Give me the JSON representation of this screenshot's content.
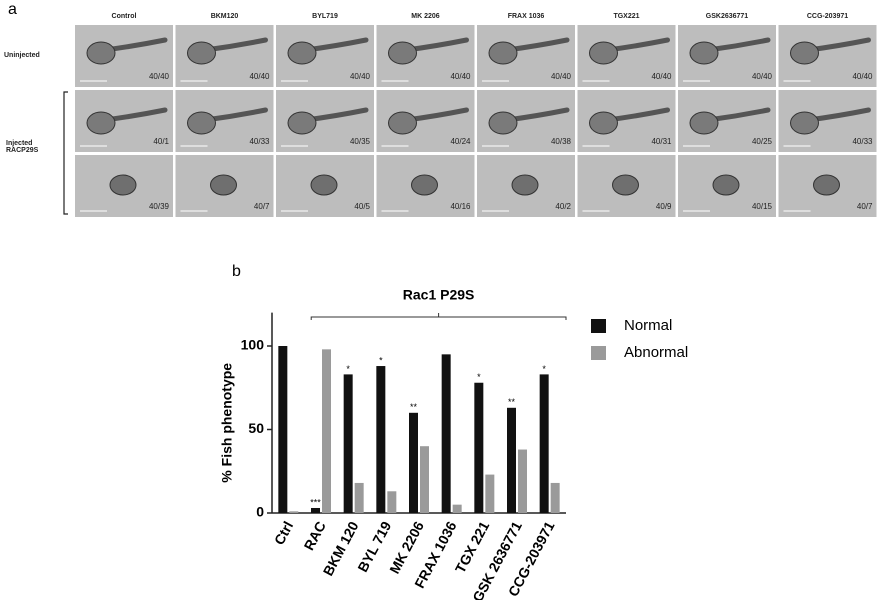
{
  "panel_a": {
    "label": "a",
    "columns": [
      "Control",
      "BKM120",
      "BYL719",
      "MK 2206",
      "FRAX 1036",
      "TGX221",
      "GSK2636771",
      "CCG-203971"
    ],
    "row_labels": [
      "Uninjected",
      "Injected RACP29S"
    ],
    "counts": [
      [
        "40/40",
        "40/40",
        "40/40",
        "40/40",
        "40/40",
        "40/40",
        "40/40",
        "40/40"
      ],
      [
        "40/1",
        "40/33",
        "40/35",
        "40/24",
        "40/38",
        "40/31",
        "40/25",
        "40/33"
      ],
      [
        "40/39",
        "40/7",
        "40/5",
        "40/16",
        "40/2",
        "40/9",
        "40/15",
        "40/7"
      ]
    ]
  },
  "chart_data": {
    "type": "bar",
    "panel_label": "b",
    "group_label": "Rac1 P29S",
    "ylabel": "% Fish phenotype",
    "categories": [
      "Ctrl",
      "RAC",
      "BKM 120",
      "BYL 719",
      "MK 2206",
      "FRAX 1036",
      "TGX 221",
      "GSK 2636771",
      "CCG-203971"
    ],
    "series": [
      {
        "name": "Normal",
        "color": "#111111",
        "values": [
          100,
          3,
          83,
          88,
          60,
          95,
          78,
          63,
          83
        ]
      },
      {
        "name": "Abnormal",
        "color": "#9a9a9a",
        "values": [
          1,
          98,
          18,
          13,
          40,
          5,
          23,
          38,
          18
        ]
      }
    ],
    "significance": [
      null,
      "***",
      "*",
      "*",
      "**",
      null,
      "*",
      "**",
      "*"
    ],
    "ylim": [
      0,
      120
    ],
    "yticks": [
      0,
      50,
      100
    ],
    "legend": "right"
  }
}
